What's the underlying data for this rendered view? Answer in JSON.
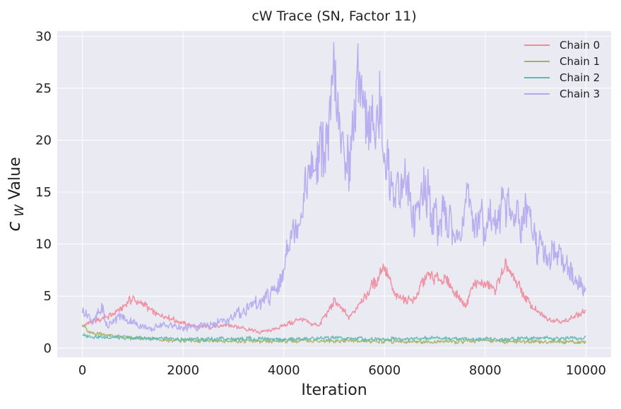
{
  "chart_data": {
    "type": "line",
    "title": "cW Trace (SN, Factor 11)",
    "xlabel": "Iteration",
    "ylabel": "c_W Value",
    "ylabel_main": "c",
    "ylabel_sub": "W",
    "ylabel_rest": " Value",
    "xlim": [
      -500,
      10500
    ],
    "ylim": [
      -0.9,
      30.5
    ],
    "xticks": [
      0,
      2000,
      4000,
      6000,
      8000,
      10000
    ],
    "yticks": [
      0,
      5,
      10,
      15,
      20,
      25,
      30
    ],
    "grid": true,
    "legend_position": "top-right",
    "series": [
      {
        "name": "Chain 0",
        "color": "#f08a9b",
        "x": [
          0,
          500,
          800,
          1000,
          1500,
          2000,
          2400,
          3000,
          3500,
          3900,
          4300,
          4700,
          5000,
          5300,
          5600,
          6000,
          6200,
          6600,
          6800,
          7200,
          7600,
          7800,
          8200,
          8400,
          8900,
          9200,
          9600,
          10000
        ],
        "y": [
          2.2,
          3.0,
          3.8,
          4.8,
          3.3,
          2.4,
          2.0,
          2.2,
          1.5,
          2.0,
          2.7,
          2.2,
          4.5,
          3.0,
          4.8,
          7.8,
          5.0,
          4.6,
          6.8,
          6.6,
          4.0,
          6.5,
          5.6,
          7.8,
          4.2,
          2.8,
          2.6,
          3.6
        ]
      },
      {
        "name": "Chain 1",
        "color": "#a3b461",
        "x": [
          0,
          100,
          300,
          600,
          1000,
          1500,
          2000,
          3000,
          4000,
          5000,
          6000,
          7000,
          8000,
          9000,
          10000
        ],
        "y": [
          2.4,
          1.6,
          1.4,
          1.2,
          0.9,
          0.85,
          0.7,
          0.65,
          0.7,
          0.7,
          0.65,
          0.6,
          0.7,
          0.6,
          0.6
        ]
      },
      {
        "name": "Chain 2",
        "color": "#5fb9b3",
        "x": [
          0,
          300,
          600,
          1000,
          1500,
          2000,
          2500,
          3000,
          3500,
          4000,
          4500,
          5000,
          5500,
          6000,
          6500,
          7000,
          7500,
          8000,
          8500,
          9000,
          9500,
          10000
        ],
        "y": [
          1.2,
          1.1,
          1.0,
          1.0,
          0.9,
          0.8,
          0.85,
          0.9,
          0.9,
          0.8,
          0.9,
          0.95,
          0.9,
          0.85,
          0.9,
          1.0,
          0.9,
          0.85,
          0.9,
          1.0,
          0.9,
          0.95
        ]
      },
      {
        "name": "Chain 3",
        "color": "#b4a7ef",
        "x": [
          0,
          200,
          400,
          500,
          700,
          1000,
          1300,
          1600,
          2000,
          2400,
          2800,
          3200,
          3600,
          3900,
          4100,
          4300,
          4500,
          4700,
          4900,
          5000,
          5100,
          5300,
          5500,
          5700,
          5900,
          6000,
          6200,
          6400,
          6600,
          6800,
          7000,
          7200,
          7400,
          7600,
          7800,
          8000,
          8200,
          8400,
          8600,
          8800,
          9000,
          9200,
          9400,
          9600,
          9800,
          10000
        ],
        "y": [
          3.5,
          2.5,
          3.8,
          2.0,
          3.0,
          2.5,
          1.8,
          2.2,
          1.9,
          2.1,
          2.5,
          3.6,
          4.5,
          6.0,
          10.0,
          12.5,
          16.0,
          20.0,
          22.0,
          28.0,
          20.0,
          17.0,
          25.5,
          21.0,
          24.0,
          19.0,
          15.0,
          15.5,
          13.0,
          15.5,
          12.0,
          13.0,
          10.5,
          14.0,
          11.5,
          12.5,
          12.0,
          14.5,
          12.0,
          13.0,
          10.5,
          8.5,
          9.5,
          8.0,
          6.0,
          5.8
        ]
      }
    ]
  }
}
